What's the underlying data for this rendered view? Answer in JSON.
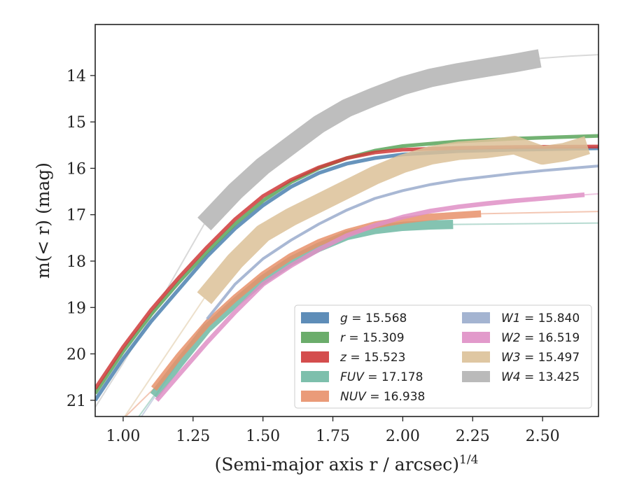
{
  "chart_data": {
    "type": "line",
    "xlabel": "(Semi-major axis r / arcsec)",
    "xlabel_sup": "1/4",
    "ylabel": "m(< r) (mag)",
    "xlim": [
      0.9,
      2.7
    ],
    "ylim": [
      21.35,
      12.9
    ],
    "y_inverted": true,
    "grid": false,
    "legend_position": "lower-right",
    "xticks": [
      "1.00",
      "1.25",
      "1.50",
      "1.75",
      "2.00",
      "2.25",
      "2.50"
    ],
    "yticks": [
      "14",
      "15",
      "16",
      "17",
      "18",
      "19",
      "20",
      "21"
    ],
    "series": [
      {
        "name": "g = 15.568",
        "color": "#4c81b0",
        "width": 0.08,
        "x": [
          0.9,
          1.0,
          1.1,
          1.2,
          1.3,
          1.4,
          1.5,
          1.6,
          1.7,
          1.8,
          1.9,
          2.0,
          2.2,
          2.4,
          2.7
        ],
        "y": [
          21.0,
          20.1,
          19.3,
          18.6,
          17.9,
          17.3,
          16.8,
          16.4,
          16.1,
          15.9,
          15.78,
          15.7,
          15.63,
          15.6,
          15.57
        ],
        "extrap_x": [],
        "extrap_y": []
      },
      {
        "name": "r = 15.309",
        "color": "#5ba45b",
        "width": 0.08,
        "x": [
          0.9,
          1.0,
          1.1,
          1.2,
          1.3,
          1.4,
          1.5,
          1.6,
          1.7,
          1.8,
          1.9,
          2.0,
          2.2,
          2.4,
          2.7
        ],
        "y": [
          20.85,
          19.95,
          19.15,
          18.45,
          17.8,
          17.2,
          16.7,
          16.3,
          16.0,
          15.78,
          15.62,
          15.52,
          15.42,
          15.36,
          15.3
        ],
        "extrap_x": [],
        "extrap_y": []
      },
      {
        "name": "z = 15.523",
        "color": "#cf3a3a",
        "width": 0.08,
        "x": [
          0.9,
          1.0,
          1.1,
          1.2,
          1.3,
          1.4,
          1.5,
          1.6,
          1.7,
          1.8,
          1.9,
          2.0,
          2.2,
          2.4,
          2.7
        ],
        "y": [
          20.75,
          19.85,
          19.05,
          18.35,
          17.7,
          17.1,
          16.6,
          16.25,
          15.98,
          15.78,
          15.66,
          15.6,
          15.56,
          15.54,
          15.53
        ],
        "extrap_x": [],
        "extrap_y": []
      },
      {
        "name": "FUV = 17.178",
        "color": "#6fb8a3",
        "width": 0.2,
        "x": [
          1.11,
          1.2,
          1.3,
          1.4,
          1.5,
          1.6,
          1.7,
          1.8,
          1.9,
          2.0,
          2.1,
          2.18
        ],
        "y": [
          20.9,
          20.2,
          19.45,
          18.9,
          18.4,
          18.0,
          17.7,
          17.45,
          17.32,
          17.25,
          17.22,
          17.21
        ],
        "extrap_x": [
          1.05,
          1.11,
          2.18,
          2.7
        ],
        "extrap_y": [
          21.4,
          20.9,
          17.21,
          17.18
        ]
      },
      {
        "name": "NUV = 16.938",
        "color": "#e8906a",
        "width": 0.15,
        "x": [
          1.11,
          1.2,
          1.3,
          1.4,
          1.5,
          1.6,
          1.7,
          1.8,
          1.9,
          2.0,
          2.1,
          2.28
        ],
        "y": [
          20.75,
          20.05,
          19.35,
          18.8,
          18.3,
          17.9,
          17.6,
          17.38,
          17.22,
          17.12,
          17.05,
          16.98
        ],
        "extrap_x": [
          1.0,
          1.11,
          2.28,
          2.7
        ],
        "extrap_y": [
          21.4,
          20.75,
          16.98,
          16.93
        ]
      },
      {
        "name": "W1 = 15.840",
        "color": "#9aaccc",
        "width": 0.06,
        "x": [
          1.3,
          1.4,
          1.5,
          1.6,
          1.7,
          1.8,
          1.9,
          2.0,
          2.1,
          2.2,
          2.3,
          2.4,
          2.5,
          2.6,
          2.7
        ],
        "y": [
          19.25,
          18.5,
          17.95,
          17.55,
          17.2,
          16.9,
          16.65,
          16.48,
          16.35,
          16.25,
          16.18,
          16.11,
          16.05,
          16.0,
          15.95
        ],
        "extrap_x": [
          1.06,
          1.3
        ],
        "extrap_y": [
          21.4,
          19.25
        ]
      },
      {
        "name": "W2 = 16.519",
        "color": "#df8fc5",
        "width": 0.1,
        "x": [
          1.12,
          1.3,
          1.4,
          1.5,
          1.6,
          1.7,
          1.8,
          1.9,
          2.0,
          2.1,
          2.2,
          2.3,
          2.4,
          2.5,
          2.65
        ],
        "y": [
          21.0,
          19.75,
          19.1,
          18.5,
          18.1,
          17.75,
          17.45,
          17.23,
          17.05,
          16.92,
          16.83,
          16.76,
          16.7,
          16.65,
          16.57
        ],
        "extrap_x": [
          2.65,
          2.7
        ],
        "extrap_y": [
          16.57,
          16.55
        ]
      },
      {
        "name": "W3 = 15.497",
        "color": "#dcc198",
        "width": 0.4,
        "x": [
          1.29,
          1.4,
          1.5,
          1.6,
          1.7,
          1.8,
          1.9,
          2.0,
          2.1,
          2.2,
          2.3,
          2.4,
          2.5,
          2.58,
          2.66
        ],
        "y": [
          18.8,
          18.0,
          17.4,
          17.05,
          16.75,
          16.45,
          16.15,
          15.9,
          15.72,
          15.62,
          15.58,
          15.5,
          15.72,
          15.65,
          15.5
        ],
        "extrap_x": [
          1.0,
          1.29
        ],
        "extrap_y": [
          21.4,
          18.8
        ]
      },
      {
        "name": "W4 = 13.425",
        "color": "#b3b3b3",
        "width": 0.4,
        "x": [
          1.29,
          1.4,
          1.5,
          1.6,
          1.7,
          1.8,
          1.9,
          2.0,
          2.1,
          2.2,
          2.3,
          2.4,
          2.49
        ],
        "y": [
          17.2,
          16.5,
          15.95,
          15.5,
          15.05,
          14.7,
          14.45,
          14.22,
          14.05,
          13.93,
          13.83,
          13.73,
          13.63
        ],
        "extrap_x": [
          0.9,
          1.0,
          1.1,
          1.2,
          1.29,
          2.49,
          2.6,
          2.7
        ],
        "extrap_y": [
          21.15,
          20.2,
          19.2,
          18.15,
          17.2,
          13.63,
          13.58,
          13.55
        ]
      }
    ]
  }
}
